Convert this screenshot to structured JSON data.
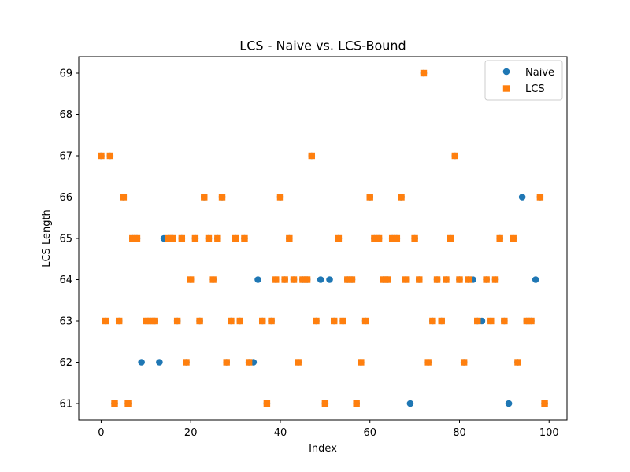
{
  "chart_data": {
    "type": "scatter",
    "title": "LCS - Naive vs. LCS-Bound",
    "xlabel": "Index",
    "ylabel": "LCS Length",
    "xlim": [
      -5,
      104
    ],
    "ylim": [
      60.6,
      69.4
    ],
    "xticks": [
      0,
      20,
      40,
      60,
      80,
      100
    ],
    "yticks": [
      61,
      62,
      63,
      64,
      65,
      66,
      67,
      68,
      69
    ],
    "grid": false,
    "legend_position": "top-right",
    "series": [
      {
        "name": "Naive",
        "marker": "circle",
        "color": "#1f77b4",
        "x": [
          0,
          1,
          2,
          3,
          4,
          5,
          6,
          7,
          8,
          9,
          10,
          11,
          12,
          13,
          14,
          15,
          16,
          17,
          18,
          19,
          20,
          21,
          22,
          23,
          24,
          25,
          26,
          27,
          28,
          29,
          30,
          31,
          32,
          33,
          34,
          35,
          36,
          37,
          38,
          39,
          40,
          41,
          42,
          43,
          44,
          45,
          46,
          47,
          48,
          49,
          50,
          51,
          52,
          53,
          54,
          55,
          56,
          57,
          58,
          59,
          60,
          61,
          62,
          63,
          64,
          65,
          66,
          67,
          68,
          69,
          70,
          71,
          72,
          73,
          74,
          75,
          76,
          77,
          78,
          79,
          80,
          81,
          82,
          83,
          84,
          85,
          86,
          87,
          88,
          89,
          90,
          91,
          92,
          93,
          94,
          95,
          96,
          97,
          98,
          99
        ],
        "y": [
          67,
          63,
          67,
          61,
          63,
          66,
          61,
          65,
          65,
          62,
          63,
          63,
          63,
          62,
          65,
          65,
          65,
          63,
          65,
          62,
          64,
          65,
          63,
          66,
          65,
          64,
          65,
          66,
          62,
          63,
          65,
          63,
          65,
          62,
          62,
          64,
          63,
          61,
          63,
          64,
          66,
          64,
          65,
          64,
          62,
          64,
          64,
          67,
          63,
          64,
          61,
          64,
          63,
          65,
          63,
          64,
          64,
          61,
          62,
          63,
          66,
          65,
          65,
          64,
          64,
          65,
          65,
          66,
          64,
          61,
          65,
          64,
          69,
          62,
          63,
          64,
          63,
          64,
          65,
          67,
          64,
          62,
          64,
          64,
          63,
          63,
          64,
          63,
          64,
          65,
          63,
          61,
          65,
          62,
          66,
          63,
          63,
          64,
          66,
          61
        ]
      },
      {
        "name": "LCS",
        "marker": "square",
        "color": "#ff7f0e",
        "x": [
          0,
          1,
          2,
          3,
          4,
          5,
          6,
          7,
          8,
          10,
          11,
          12,
          15,
          16,
          17,
          18,
          19,
          20,
          21,
          22,
          23,
          24,
          25,
          26,
          27,
          28,
          29,
          30,
          31,
          32,
          33,
          36,
          37,
          38,
          39,
          40,
          41,
          42,
          43,
          44,
          45,
          46,
          47,
          48,
          50,
          52,
          53,
          54,
          55,
          56,
          57,
          58,
          59,
          60,
          61,
          62,
          63,
          64,
          65,
          66,
          67,
          68,
          70,
          71,
          72,
          73,
          74,
          75,
          76,
          77,
          78,
          79,
          80,
          81,
          82,
          84,
          86,
          87,
          88,
          89,
          90,
          92,
          93,
          95,
          96,
          98,
          99
        ],
        "y": [
          67,
          63,
          67,
          61,
          63,
          66,
          61,
          65,
          65,
          63,
          63,
          63,
          65,
          65,
          63,
          65,
          62,
          64,
          65,
          63,
          66,
          65,
          64,
          65,
          66,
          62,
          63,
          65,
          63,
          65,
          62,
          63,
          61,
          63,
          64,
          66,
          64,
          65,
          64,
          62,
          64,
          64,
          67,
          63,
          61,
          63,
          65,
          63,
          64,
          64,
          61,
          62,
          63,
          66,
          65,
          65,
          64,
          64,
          65,
          65,
          66,
          64,
          65,
          64,
          69,
          62,
          63,
          64,
          63,
          64,
          65,
          67,
          64,
          62,
          64,
          63,
          64,
          63,
          64,
          65,
          63,
          65,
          62,
          63,
          63,
          66,
          61
        ]
      }
    ]
  }
}
